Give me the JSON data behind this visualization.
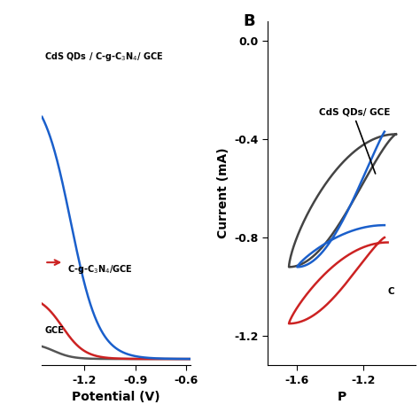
{
  "panel_A": {
    "xlabel": "Potential (V)",
    "xlim": [
      -1.45,
      -0.575
    ],
    "ylim": [
      -0.02,
      1.05
    ],
    "xticks": [
      -1.2,
      -0.9,
      -0.6
    ],
    "xtick_labels": [
      "-1.2",
      "-0.9",
      "-0.6"
    ],
    "curve_blue_color": "#1a5fcb",
    "curve_red_color": "#cc2222",
    "curve_gray_color": "#555555",
    "label_top": "CdS QDs / C-g-C₃N₄/ GCE",
    "label_mid": "C-g-C₃N₄/GCE",
    "label_bot": "GCE"
  },
  "panel_B": {
    "panel_label": "B",
    "xlabel": "P",
    "ylabel": "Current (mA)",
    "xlim": [
      -1.78,
      -0.88
    ],
    "ylim": [
      -1.32,
      0.08
    ],
    "xticks": [
      -1.6,
      -1.2
    ],
    "xtick_labels": [
      "-1.6",
      "-1.2"
    ],
    "yticks": [
      0.0,
      -0.4,
      -0.8,
      -1.2
    ],
    "ytick_labels": [
      "0.0",
      "-0.4",
      "-0.8",
      "-1.2"
    ],
    "curve_gray_color": "#444444",
    "curve_blue_color": "#1a5fcb",
    "curve_red_color": "#cc2222",
    "label_gray": "CdS QDs/ GCE",
    "label_red": "C"
  },
  "bg_color": "#ffffff",
  "text_color": "#000000"
}
